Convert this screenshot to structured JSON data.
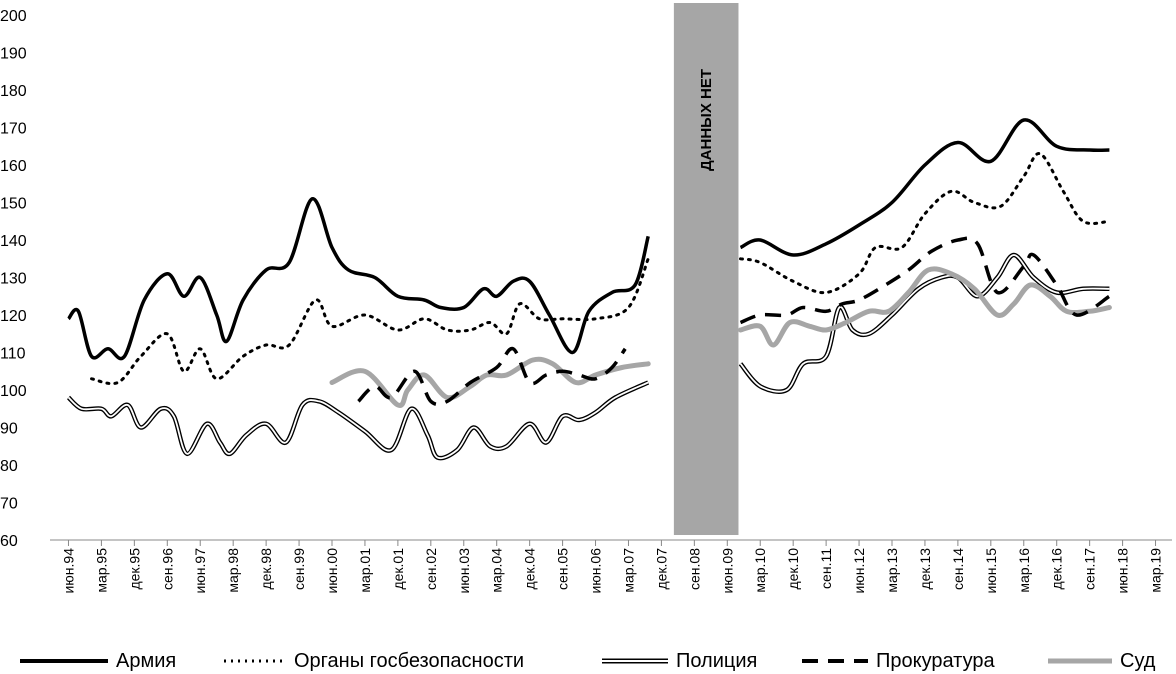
{
  "chart_data": {
    "type": "line",
    "title": "",
    "xlabel": "",
    "ylabel": "",
    "ylim": [
      60,
      200
    ],
    "yticks": [
      60,
      70,
      80,
      90,
      100,
      110,
      120,
      130,
      140,
      150,
      160,
      170,
      180,
      190,
      200
    ],
    "x_categories": [
      "июн.94",
      "мар.95",
      "дек.95",
      "сен.96",
      "июн.97",
      "мар.98",
      "дек.98",
      "сен.99",
      "июн.00",
      "мар.01",
      "дек.01",
      "сен.02",
      "июн.03",
      "мар.04",
      "дек.04",
      "сен.05",
      "июн.06",
      "мар.07",
      "дек.07",
      "сен.08",
      "июн.09",
      "мар.10",
      "дек.10",
      "сен.11",
      "июн.12",
      "мар.13",
      "дек.13",
      "сен.14",
      "июн.15",
      "мар.16",
      "дек.16",
      "сен.17",
      "июн.18",
      "мар.19"
    ],
    "gap_annotation": {
      "label": "ДАННЫХ НЕТ",
      "from_index": 18.5,
      "to_index": 20.4
    },
    "grid": false,
    "legend_position": "bottom",
    "series": [
      {
        "name": "Армия",
        "style": "solid-black",
        "points": [
          [
            0,
            119
          ],
          [
            0.3,
            121
          ],
          [
            0.7,
            109
          ],
          [
            1.2,
            111
          ],
          [
            1.7,
            109
          ],
          [
            2.3,
            124
          ],
          [
            3,
            131
          ],
          [
            3.5,
            125
          ],
          [
            4,
            130
          ],
          [
            4.5,
            120
          ],
          [
            4.8,
            113
          ],
          [
            5.3,
            124
          ],
          [
            6,
            132
          ],
          [
            6.7,
            134
          ],
          [
            7.4,
            151
          ],
          [
            8,
            138
          ],
          [
            8.5,
            132
          ],
          [
            9.3,
            130
          ],
          [
            10,
            125
          ],
          [
            10.8,
            124
          ],
          [
            11.3,
            122
          ],
          [
            12,
            122
          ],
          [
            12.6,
            127
          ],
          [
            13,
            125
          ],
          [
            13.5,
            129
          ],
          [
            14,
            129
          ],
          [
            14.6,
            120
          ],
          [
            15.3,
            110
          ],
          [
            15.8,
            121
          ],
          [
            16.5,
            126
          ],
          [
            17.2,
            128
          ],
          [
            17.6,
            141
          ]
        ]
      },
      {
        "name": "",
        "style": "solid-black",
        "points": [
          [
            20.4,
            138
          ],
          [
            21,
            140
          ],
          [
            22,
            136
          ],
          [
            23,
            139
          ],
          [
            24,
            144
          ],
          [
            25,
            150
          ],
          [
            26,
            160
          ],
          [
            27,
            166
          ],
          [
            28,
            161
          ],
          [
            29,
            172
          ],
          [
            30,
            165
          ],
          [
            31,
            164
          ],
          [
            31.6,
            164
          ]
        ]
      },
      {
        "name": "Органы госбезопасности",
        "style": "dotted",
        "points": [
          [
            0.7,
            103
          ],
          [
            1.5,
            102
          ],
          [
            2.2,
            109
          ],
          [
            3,
            115
          ],
          [
            3.5,
            105
          ],
          [
            4,
            111
          ],
          [
            4.5,
            103
          ],
          [
            5.3,
            109
          ],
          [
            6,
            112
          ],
          [
            6.7,
            112
          ],
          [
            7.5,
            124
          ],
          [
            8,
            117
          ],
          [
            9,
            120
          ],
          [
            10,
            116
          ],
          [
            10.8,
            119
          ],
          [
            11.5,
            116
          ],
          [
            12.2,
            116
          ],
          [
            12.8,
            118
          ],
          [
            13.3,
            115
          ],
          [
            13.7,
            123
          ],
          [
            14.3,
            119
          ],
          [
            15,
            119
          ],
          [
            16,
            119
          ],
          [
            17,
            122
          ],
          [
            17.6,
            135
          ]
        ]
      },
      {
        "name": "",
        "style": "dotted",
        "points": [
          [
            20.4,
            135
          ],
          [
            21,
            134
          ],
          [
            22,
            129
          ],
          [
            23,
            126
          ],
          [
            24,
            131
          ],
          [
            24.5,
            138
          ],
          [
            25.3,
            138
          ],
          [
            26,
            147
          ],
          [
            26.8,
            153
          ],
          [
            27.5,
            150
          ],
          [
            28.3,
            149
          ],
          [
            29,
            157
          ],
          [
            29.5,
            163
          ],
          [
            30.2,
            153
          ],
          [
            30.8,
            145
          ],
          [
            31.6,
            145
          ]
        ]
      },
      {
        "name": "Полиция",
        "style": "double-line",
        "points": [
          [
            0,
            98
          ],
          [
            0.4,
            95
          ],
          [
            1,
            95
          ],
          [
            1.3,
            93
          ],
          [
            1.8,
            96
          ],
          [
            2.2,
            90
          ],
          [
            2.8,
            95
          ],
          [
            3.2,
            93
          ],
          [
            3.6,
            83
          ],
          [
            4.2,
            91
          ],
          [
            4.6,
            86
          ],
          [
            4.9,
            83
          ],
          [
            5.4,
            88
          ],
          [
            6,
            91
          ],
          [
            6.6,
            86
          ],
          [
            7.1,
            96
          ],
          [
            7.6,
            97
          ],
          [
            8.2,
            94
          ],
          [
            9,
            89
          ],
          [
            9.8,
            84
          ],
          [
            10.4,
            95
          ],
          [
            10.9,
            88
          ],
          [
            11.2,
            82
          ],
          [
            11.8,
            84
          ],
          [
            12.3,
            90
          ],
          [
            12.8,
            85
          ],
          [
            13.3,
            85
          ],
          [
            14,
            91
          ],
          [
            14.5,
            86
          ],
          [
            15,
            93
          ],
          [
            15.5,
            92
          ],
          [
            16,
            94
          ],
          [
            16.6,
            98
          ],
          [
            17.6,
            102
          ]
        ]
      },
      {
        "name": "",
        "style": "double-line",
        "points": [
          [
            20.4,
            107
          ],
          [
            21,
            101
          ],
          [
            21.8,
            100
          ],
          [
            22.3,
            107
          ],
          [
            23,
            109
          ],
          [
            23.4,
            122
          ],
          [
            23.8,
            116
          ],
          [
            24.3,
            115
          ],
          [
            25,
            120
          ],
          [
            25.8,
            127
          ],
          [
            26.5,
            130
          ],
          [
            27,
            130
          ],
          [
            27.6,
            125
          ],
          [
            28.2,
            130
          ],
          [
            28.7,
            136
          ],
          [
            29.3,
            130
          ],
          [
            30,
            126
          ],
          [
            30.8,
            127
          ],
          [
            31.6,
            127
          ]
        ]
      },
      {
        "name": "Прокуратура",
        "style": "dashed",
        "points": [
          [
            8.8,
            97
          ],
          [
            9.3,
            101
          ],
          [
            9.8,
            98
          ],
          [
            10.5,
            105
          ],
          [
            11,
            97
          ],
          [
            11.5,
            97
          ],
          [
            12.2,
            102
          ],
          [
            13,
            106
          ],
          [
            13.5,
            111
          ],
          [
            14,
            102
          ],
          [
            14.5,
            104
          ],
          [
            15,
            105
          ],
          [
            15.5,
            104
          ],
          [
            16,
            103
          ],
          [
            16.5,
            106
          ],
          [
            16.9,
            111
          ]
        ]
      },
      {
        "name": "",
        "style": "dashed",
        "points": [
          [
            20.4,
            118
          ],
          [
            21,
            120
          ],
          [
            21.8,
            120
          ],
          [
            22.3,
            122
          ],
          [
            23,
            121
          ],
          [
            23.5,
            123
          ],
          [
            24,
            124
          ],
          [
            24.8,
            128
          ],
          [
            25.5,
            132
          ],
          [
            26.2,
            137
          ],
          [
            27,
            140
          ],
          [
            27.6,
            139
          ],
          [
            28.2,
            126
          ],
          [
            29,
            133
          ],
          [
            29.3,
            136
          ],
          [
            30,
            128
          ],
          [
            30.6,
            120
          ],
          [
            31.6,
            125
          ]
        ]
      },
      {
        "name": "Суд",
        "style": "solid-gray",
        "points": [
          [
            8,
            102
          ],
          [
            9,
            105
          ],
          [
            10,
            96
          ],
          [
            10.3,
            100
          ],
          [
            10.8,
            104
          ],
          [
            11.5,
            98
          ],
          [
            12.2,
            101
          ],
          [
            12.7,
            104
          ],
          [
            13.3,
            104
          ],
          [
            14.1,
            108
          ],
          [
            14.7,
            107
          ],
          [
            15.4,
            102
          ],
          [
            16,
            104
          ],
          [
            16.8,
            106
          ],
          [
            17.6,
            107
          ]
        ]
      },
      {
        "name": "",
        "style": "solid-gray",
        "points": [
          [
            20.4,
            116
          ],
          [
            21,
            117
          ],
          [
            21.4,
            112
          ],
          [
            21.9,
            118
          ],
          [
            22.5,
            117
          ],
          [
            23,
            116
          ],
          [
            23.6,
            118
          ],
          [
            24.3,
            121
          ],
          [
            24.9,
            121
          ],
          [
            25.5,
            126
          ],
          [
            26.1,
            132
          ],
          [
            26.8,
            131
          ],
          [
            27.5,
            127
          ],
          [
            28.2,
            120
          ],
          [
            28.7,
            123
          ],
          [
            29.2,
            128
          ],
          [
            29.8,
            125
          ],
          [
            30.3,
            121
          ],
          [
            31,
            121
          ],
          [
            31.6,
            122
          ]
        ]
      }
    ]
  },
  "legend": {
    "items": [
      {
        "label": "Армия"
      },
      {
        "label": "Органы госбезопасности"
      },
      {
        "label": "Полиция"
      },
      {
        "label": "Прокуратура"
      },
      {
        "label": "Суд"
      }
    ]
  },
  "colors": {
    "line_black": "#000000",
    "line_gray": "#a6a6a6",
    "gap_band": "#a6a6a6",
    "axis": "#888888"
  }
}
